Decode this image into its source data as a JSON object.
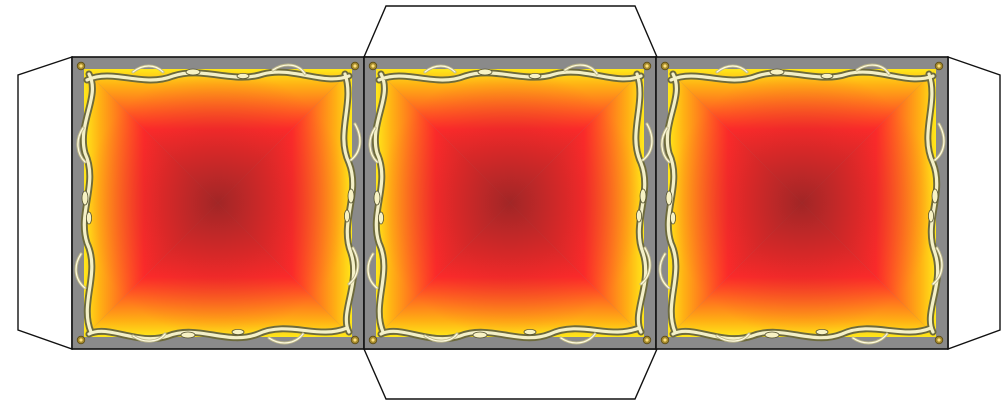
{
  "template": {
    "panel_count": 3,
    "colors": {
      "background": "#ffffff",
      "outline": "#111111",
      "frame_gray": "#8a8a8a",
      "gradient_outer": "#ffe81a",
      "gradient_mid": "#ffb014",
      "gradient_red": "#ff2a2a",
      "gradient_center": "#b32828",
      "ornament_light": "#f4f0c8",
      "ornament_dark": "#6d6a3c"
    },
    "icons": {
      "panel_ornament": "ornate-gold-frame-icon",
      "corner_ornament": "corner-rosette-icon"
    }
  }
}
